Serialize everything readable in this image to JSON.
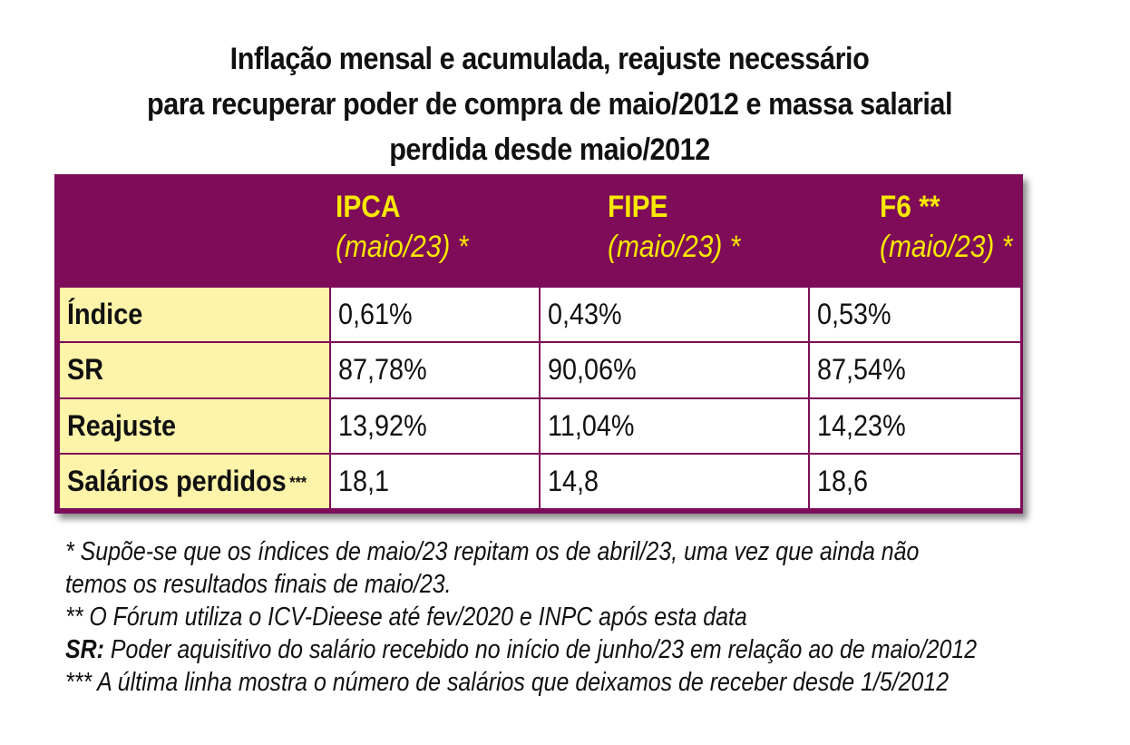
{
  "title": {
    "line1": "Inflação mensal e acumulada, reajuste necessário",
    "line2": "para recuperar poder de compra de maio/2012 e massa salarial",
    "line3": "perdida desde maio/2012"
  },
  "colors": {
    "header_bg": "#7e0c59",
    "header_text": "#f7e800",
    "label_bg": "#fdf3a9"
  },
  "table": {
    "columns": [
      {
        "name": "IPCA",
        "sub": "(maio/23) *"
      },
      {
        "name": "FIPE",
        "sub": "(maio/23) *"
      },
      {
        "name": "F6 **",
        "sub": "(maio/23) *"
      }
    ],
    "rows": [
      {
        "label": "Índice",
        "stars": "",
        "values": [
          "0,61%",
          "0,43%",
          "0,53%"
        ]
      },
      {
        "label": "SR",
        "stars": "",
        "values": [
          "87,78%",
          "90,06%",
          "87,54%"
        ]
      },
      {
        "label": "Reajuste",
        "stars": "",
        "values": [
          "13,92%",
          "11,04%",
          "14,23%"
        ]
      },
      {
        "label": "Salários perdidos",
        "stars": "***",
        "values": [
          "18,1",
          "14,8",
          "18,6"
        ]
      }
    ]
  },
  "notes": {
    "n1_line1": "* Supõe-se que os índices de maio/23 repitam os de abril/23, uma vez que ainda não",
    "n1_line2": "temos os resultados finais de maio/23.",
    "n2": "** O Fórum utiliza o ICV-Dieese até fev/2020 e INPC após esta data",
    "n3_term": "SR:",
    "n3_text": " Poder aquisitivo do salário recebido no início de junho/23 em relação ao de maio/2012",
    "n4": "*** A última linha mostra o número de salários que deixamos de receber desde 1/5/2012"
  }
}
